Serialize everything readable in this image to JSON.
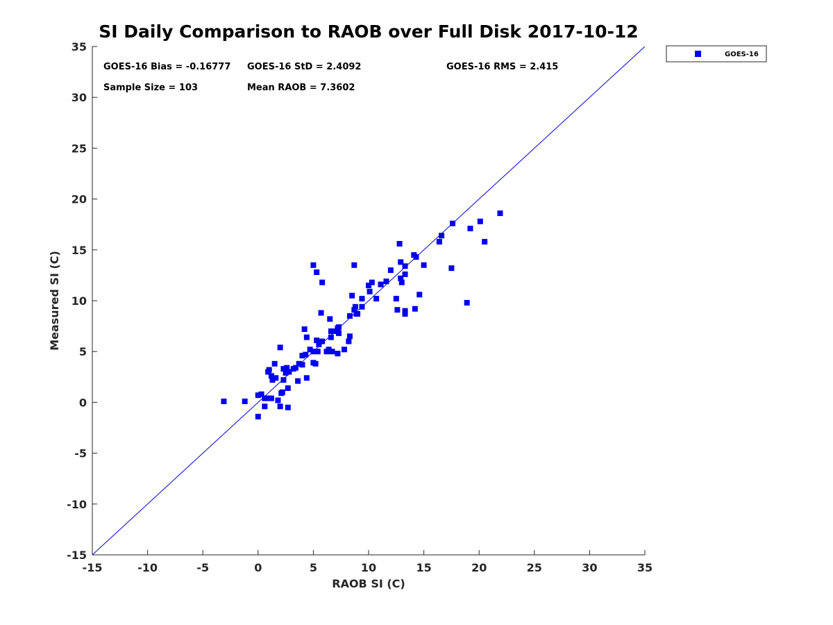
{
  "chart_data": {
    "type": "scatter",
    "title": "SI Daily Comparison to RAOB over Full Disk 2017-10-12",
    "xlabel": "RAOB SI (C)",
    "ylabel": "Measured SI (C)",
    "xlim": [
      -15,
      35
    ],
    "ylim": [
      -15,
      35
    ],
    "xticks": [
      "-15",
      "-10",
      "-5",
      "0",
      "5",
      "10",
      "15",
      "20",
      "25",
      "30",
      "35"
    ],
    "yticks": [
      "-15",
      "-10",
      "-5",
      "0",
      "5",
      "10",
      "15",
      "20",
      "25",
      "30",
      "35"
    ],
    "grid": false,
    "legend_position": "outside-top-right",
    "reference_line": "y = x",
    "stats": {
      "bias": "GOES-16 Bias = -0.16777",
      "std": "GOES-16 StD = 2.4092",
      "rms": "GOES-16 RMS = 2.415",
      "sample_size": "Sample Size = 103",
      "mean_raob": "Mean RAOB = 7.3602"
    },
    "marker_color": "#0000ee",
    "line_color": "#0000dd",
    "series": [
      {
        "name": "GOES-16",
        "points": [
          [
            -3.1,
            0.1
          ],
          [
            -1.2,
            0.1
          ],
          [
            0.0,
            0.7
          ],
          [
            0.0,
            -1.4
          ],
          [
            0.3,
            0.8
          ],
          [
            0.6,
            -0.4
          ],
          [
            0.6,
            0.4
          ],
          [
            0.9,
            3.0
          ],
          [
            1.0,
            3.2
          ],
          [
            1.0,
            0.4
          ],
          [
            1.2,
            0.4
          ],
          [
            1.2,
            2.6
          ],
          [
            1.3,
            2.2
          ],
          [
            1.5,
            3.8
          ],
          [
            1.6,
            2.4
          ],
          [
            1.8,
            0.2
          ],
          [
            2.0,
            5.4
          ],
          [
            2.0,
            -0.4
          ],
          [
            2.1,
            0.9
          ],
          [
            2.2,
            1.0
          ],
          [
            2.3,
            2.2
          ],
          [
            2.3,
            3.3
          ],
          [
            2.5,
            2.9
          ],
          [
            2.6,
            3.4
          ],
          [
            2.7,
            1.4
          ],
          [
            2.7,
            -0.5
          ],
          [
            2.8,
            3.0
          ],
          [
            3.2,
            3.3
          ],
          [
            3.4,
            3.4
          ],
          [
            3.6,
            2.1
          ],
          [
            3.7,
            3.8
          ],
          [
            4.0,
            3.7
          ],
          [
            4.0,
            4.6
          ],
          [
            4.2,
            7.2
          ],
          [
            4.3,
            4.7
          ],
          [
            4.4,
            6.4
          ],
          [
            4.4,
            2.4
          ],
          [
            4.7,
            5.2
          ],
          [
            5.0,
            13.5
          ],
          [
            5.0,
            5.0
          ],
          [
            5.0,
            3.9
          ],
          [
            5.2,
            3.8
          ],
          [
            5.3,
            12.8
          ],
          [
            5.3,
            6.1
          ],
          [
            5.4,
            5.0
          ],
          [
            5.5,
            5.7
          ],
          [
            5.7,
            8.8
          ],
          [
            5.8,
            6.0
          ],
          [
            5.8,
            11.8
          ],
          [
            6.2,
            5.0
          ],
          [
            6.4,
            5.2
          ],
          [
            6.5,
            8.2
          ],
          [
            6.6,
            7.0
          ],
          [
            6.6,
            6.4
          ],
          [
            6.7,
            5.0
          ],
          [
            7.1,
            7.0
          ],
          [
            7.2,
            4.8
          ],
          [
            7.2,
            7.3
          ],
          [
            7.3,
            6.8
          ],
          [
            7.3,
            7.4
          ],
          [
            7.8,
            5.2
          ],
          [
            8.2,
            6.0
          ],
          [
            8.3,
            6.5
          ],
          [
            8.3,
            8.5
          ],
          [
            8.5,
            10.5
          ],
          [
            8.7,
            13.5
          ],
          [
            8.7,
            9.1
          ],
          [
            8.8,
            9.4
          ],
          [
            8.9,
            8.7
          ],
          [
            9.0,
            8.7
          ],
          [
            9.4,
            10.2
          ],
          [
            9.4,
            9.4
          ],
          [
            10.0,
            11.5
          ],
          [
            10.1,
            10.9
          ],
          [
            10.3,
            11.8
          ],
          [
            10.7,
            10.2
          ],
          [
            11.1,
            11.6
          ],
          [
            11.6,
            11.9
          ],
          [
            12.0,
            13.0
          ],
          [
            12.5,
            10.2
          ],
          [
            12.6,
            9.1
          ],
          [
            12.8,
            15.6
          ],
          [
            12.9,
            12.2
          ],
          [
            12.9,
            13.8
          ],
          [
            13.0,
            11.8
          ],
          [
            13.3,
            13.4
          ],
          [
            13.3,
            12.6
          ],
          [
            13.3,
            9.0
          ],
          [
            13.3,
            8.7
          ],
          [
            14.1,
            14.5
          ],
          [
            14.2,
            9.2
          ],
          [
            14.3,
            14.3
          ],
          [
            14.6,
            10.6
          ],
          [
            15.0,
            13.5
          ],
          [
            16.4,
            15.8
          ],
          [
            16.6,
            16.4
          ],
          [
            17.5,
            13.2
          ],
          [
            17.6,
            17.6
          ],
          [
            18.9,
            9.8
          ],
          [
            19.2,
            17.1
          ],
          [
            20.1,
            17.8
          ],
          [
            20.5,
            15.8
          ],
          [
            21.9,
            18.6
          ]
        ]
      }
    ]
  }
}
